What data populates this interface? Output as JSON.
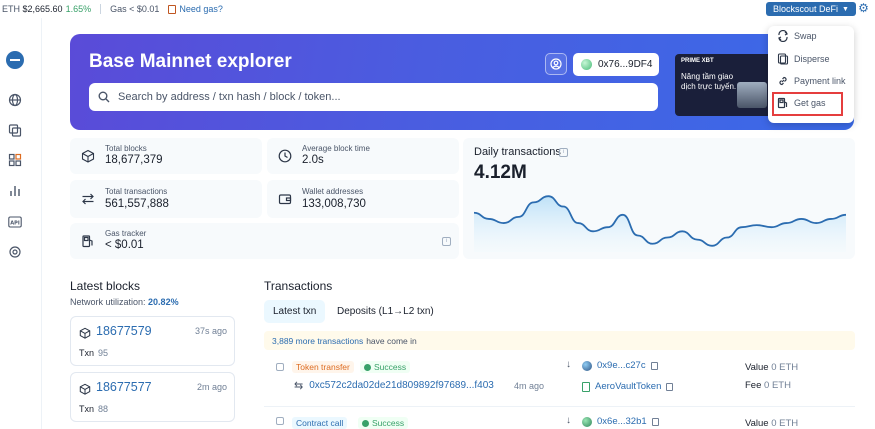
{
  "topbar": {
    "eth_label": "ETH",
    "eth_price": "$2,665.60",
    "eth_change": "1.65%",
    "gas_text": "Gas < $0.01",
    "need_gas": "Need gas?",
    "network_button": "Blockscout DeFi"
  },
  "hero": {
    "title": "Base Mainnet explorer",
    "search_placeholder": "Search by address / txn hash / block / token...",
    "wallet": "0x76...9DF4",
    "ad_brand": "PRIME XBT",
    "ad_text": "Nâng tầm giao dịch trực tuyến."
  },
  "menu": {
    "items": [
      "Swap",
      "Disperse",
      "Payment link",
      "Get gas"
    ]
  },
  "stats": {
    "total_blocks_label": "Total blocks",
    "total_blocks": "18,677,379",
    "avg_block_time_label": "Average block time",
    "avg_block_time": "2.0s",
    "total_tx_label": "Total transactions",
    "total_tx": "561,557,888",
    "wallets_label": "Wallet addresses",
    "wallets": "133,008,730",
    "gas_label": "Gas tracker",
    "gas": "< $0.01"
  },
  "daily": {
    "title": "Daily transactions",
    "value": "4.12M"
  },
  "chart_data": {
    "type": "area",
    "title": "Daily transactions",
    "series": [
      {
        "values": [
          4.35,
          4.2,
          4.1,
          4.25,
          4.6,
          4.75,
          4.5,
          4.1,
          3.9,
          4.0,
          4.3,
          3.8,
          3.6,
          3.75,
          3.9,
          3.7,
          3.55,
          3.75,
          4.0,
          4.05,
          4.0,
          4.1,
          4.2,
          4.1,
          4.2,
          4.3
        ]
      }
    ]
  },
  "latest_blocks": {
    "title": "Latest blocks",
    "util_label": "Network utilization:",
    "util_value": "20.82%",
    "blocks": [
      {
        "number": "18677579",
        "ago": "37s ago",
        "txn_label": "Txn",
        "txn": "95"
      },
      {
        "number": "18677577",
        "ago": "2m ago",
        "txn_label": "Txn",
        "txn": "88"
      }
    ]
  },
  "transactions": {
    "title": "Transactions",
    "tab_latest": "Latest txn",
    "tab_deposits": "Deposits (L1→L2 txn)",
    "banner_count": "3,889 more transactions",
    "banner_rest": "have come in",
    "rows": [
      {
        "type": "Token transfer",
        "status": "Success",
        "hash": "0xc572c2da02de21d809892f97689...f403",
        "ago": "4m ago",
        "from": "0x9e...c27c",
        "to": "AeroVaultToken",
        "value_label": "Value",
        "value": "0 ETH",
        "fee_label": "Fee",
        "fee": "0 ETH"
      },
      {
        "type": "Contract call",
        "status": "Success",
        "from": "0x6e...32b1",
        "value_label": "Value",
        "value": "0 ETH"
      }
    ]
  }
}
